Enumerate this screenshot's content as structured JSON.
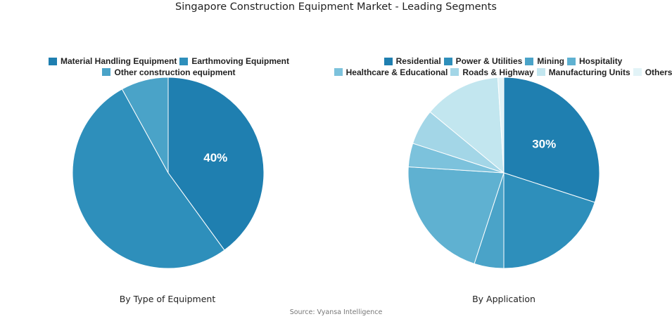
{
  "title": "Singapore Construction Equipment Market - Leading Segments",
  "source": "Source: Vyansa Intelligence",
  "chart_data": [
    {
      "type": "pie",
      "caption": "By Type of Equipment",
      "labels": [
        "Material Handling Equipment",
        "Earthmoving Equipment",
        "Other construction equipment"
      ],
      "values": [
        40,
        52,
        8
      ],
      "colors": [
        "#1f7fb0",
        "#2e8fbb",
        "#4aa3c8"
      ],
      "data_labels": [
        {
          "index": 0,
          "text": "40%"
        }
      ],
      "legend": "top"
    },
    {
      "type": "pie",
      "caption": "By Application",
      "labels": [
        "Residential",
        "Power & Utilities",
        "Mining",
        "Hospitality",
        "Healthcare & Educational",
        "Roads & Highway",
        "Manufacturing Units",
        "Others"
      ],
      "values": [
        30,
        20,
        5,
        21,
        4,
        6,
        13,
        1
      ],
      "colors": [
        "#1f7fb0",
        "#2e8fbb",
        "#4aa3c8",
        "#5fb1d1",
        "#7cc2dc",
        "#a3d6e7",
        "#c2e6ef",
        "#e2f3f7"
      ],
      "data_labels": [
        {
          "index": 0,
          "text": "30%"
        }
      ],
      "legend": "top"
    }
  ]
}
